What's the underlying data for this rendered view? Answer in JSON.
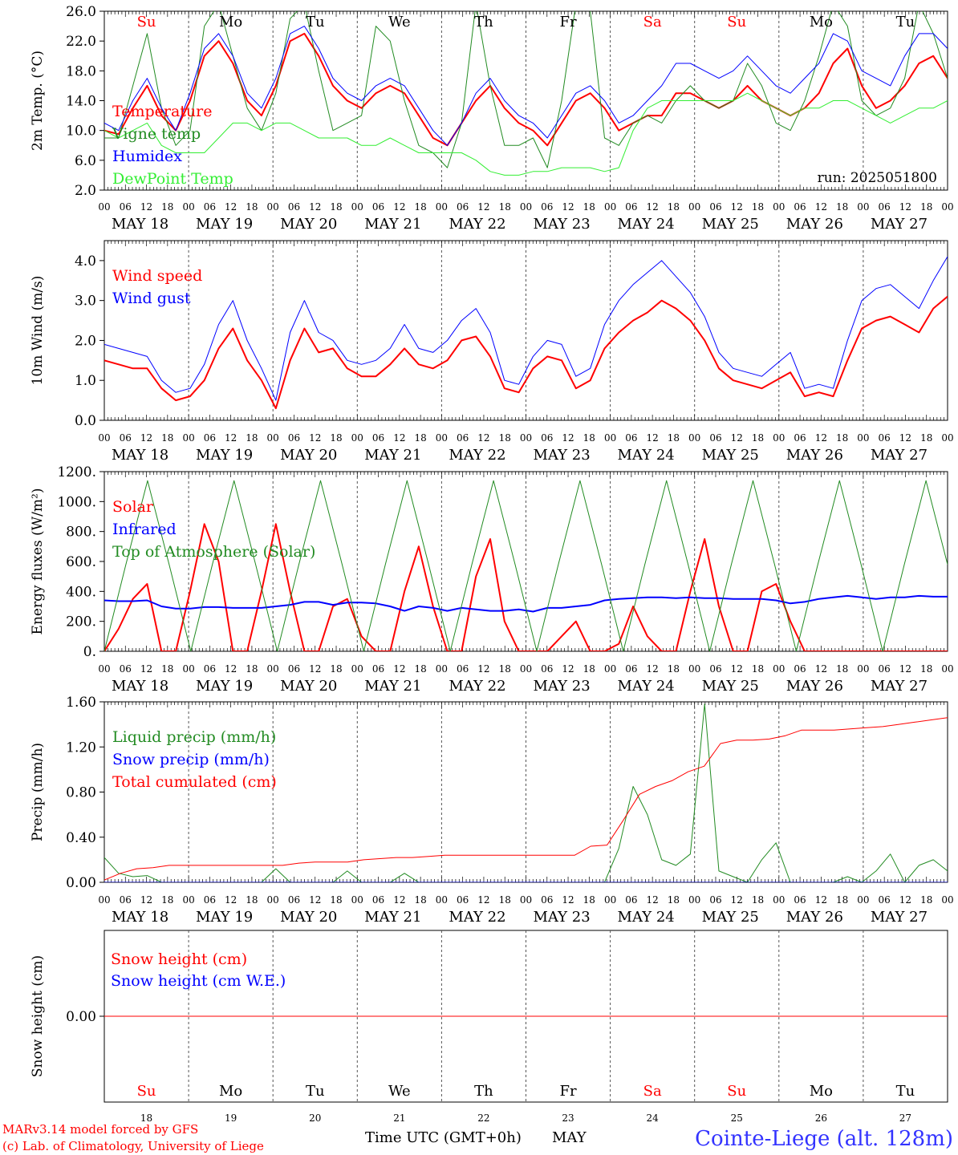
{
  "run_label": "run: 2025051800",
  "days": {
    "names": [
      "Su",
      "Mo",
      "Tu",
      "We",
      "Th",
      "Fr",
      "Sa",
      "Su",
      "Mo",
      "Tu"
    ],
    "dates": [
      "MAY 18",
      "MAY 19",
      "MAY 20",
      "MAY 21",
      "MAY 22",
      "MAY 23",
      "MAY 24",
      "MAY 25",
      "MAY 26",
      "MAY 27"
    ],
    "day_numbers": [
      "18",
      "19",
      "20",
      "21",
      "22",
      "23",
      "24",
      "25",
      "26",
      "27"
    ],
    "weekend_color": "#ff0000",
    "weekday_color": "#000000",
    "hour_ticks": [
      "00",
      "06",
      "12",
      "18"
    ],
    "final_hour": "00"
  },
  "footer": {
    "credit_line1": "MARv3.14 model forced by GFS",
    "credit_line2": "(c) Lab. of Climatology, University of Liege",
    "xaxis_label": "Time UTC (GMT+0h)",
    "month": "MAY",
    "station": "Cointe-Liege (alt. 128m)",
    "station_color": "#3333ff",
    "credit_color": "#ff0000"
  },
  "chart_data": [
    {
      "type": "line",
      "ylabel": "2m Temp. (°C)",
      "ylim": [
        2,
        26
      ],
      "yticks": [
        "2.0",
        "6.0",
        "10.0",
        "14.0",
        "18.0",
        "22.0",
        "26.0"
      ],
      "x_hours_per_point": 6,
      "series": [
        {
          "name": "Temperature",
          "color": "#ff0000",
          "width": 2,
          "values": [
            10,
            9.5,
            13,
            16,
            12,
            10,
            14,
            20,
            22,
            19,
            14,
            12,
            16,
            22,
            23,
            20,
            16,
            14,
            13,
            15,
            16,
            15,
            12,
            9,
            8,
            11,
            14,
            16,
            13,
            11,
            10,
            8,
            11,
            14,
            15,
            13,
            10,
            11,
            12,
            12,
            15,
            15,
            14,
            13,
            14,
            16,
            14,
            13,
            12,
            13,
            15,
            19,
            21,
            16,
            13,
            14,
            16,
            19,
            20,
            17
          ]
        },
        {
          "name": "Vigne temp",
          "color": "#228b22",
          "width": 1,
          "values": [
            9,
            9,
            16,
            23,
            13,
            8,
            10,
            24,
            27,
            20,
            13,
            10,
            15,
            25,
            27,
            18,
            10,
            11,
            12,
            24,
            22,
            14,
            8,
            7,
            5,
            11,
            27,
            16,
            8,
            8,
            9,
            5,
            14,
            27,
            26,
            9,
            8,
            11,
            12,
            11,
            14,
            16,
            14,
            13,
            14,
            19,
            16,
            11,
            10,
            14,
            20,
            27,
            24,
            14,
            12,
            13,
            17,
            27,
            23,
            17
          ]
        },
        {
          "name": "Humidex",
          "color": "#0000ff",
          "width": 1,
          "values": [
            11,
            10,
            14,
            17,
            13,
            10,
            15,
            21,
            23,
            20,
            15,
            13,
            17,
            23,
            24,
            21,
            17,
            15,
            14,
            16,
            17,
            16,
            13,
            10,
            8,
            11,
            15,
            17,
            14,
            12,
            11,
            9,
            12,
            15,
            16,
            14,
            11,
            12,
            14,
            16,
            19,
            19,
            18,
            17,
            18,
            20,
            18,
            16,
            15,
            17,
            19,
            23,
            22,
            18,
            17,
            16,
            20,
            23,
            23,
            21
          ]
        },
        {
          "name": "DewPoint Temp",
          "color": "#33ee33",
          "width": 1,
          "values": [
            10,
            9,
            10,
            11,
            8,
            7,
            7,
            7,
            9,
            11,
            11,
            10,
            11,
            11,
            10,
            9,
            9,
            9,
            8,
            8,
            9,
            8,
            7,
            7,
            7,
            7,
            6,
            4.5,
            4,
            4,
            4.5,
            4.5,
            5,
            5,
            5,
            4.5,
            5,
            10,
            13,
            14,
            14,
            14,
            14,
            14,
            14,
            15,
            14,
            13,
            12,
            13,
            13,
            14,
            14,
            13,
            12,
            11,
            12,
            13,
            13,
            14
          ]
        }
      ]
    },
    {
      "type": "line",
      "ylabel": "10m Wind (m/s)",
      "ylim": [
        0,
        4.5
      ],
      "yticks": [
        "0.0",
        "1.0",
        "2.0",
        "3.0",
        "4.0"
      ],
      "x_hours_per_point": 6,
      "series": [
        {
          "name": "Wind speed",
          "color": "#ff0000",
          "width": 2,
          "values": [
            1.5,
            1.4,
            1.3,
            1.3,
            0.8,
            0.5,
            0.6,
            1.0,
            1.8,
            2.3,
            1.5,
            1.0,
            0.3,
            1.5,
            2.3,
            1.7,
            1.8,
            1.3,
            1.1,
            1.1,
            1.4,
            1.8,
            1.4,
            1.3,
            1.5,
            2.0,
            2.1,
            1.6,
            0.8,
            0.7,
            1.3,
            1.6,
            1.5,
            0.8,
            1.0,
            1.8,
            2.2,
            2.5,
            2.7,
            3.0,
            2.8,
            2.5,
            2.0,
            1.3,
            1.0,
            0.9,
            0.8,
            1.0,
            1.2,
            0.6,
            0.7,
            0.6,
            1.5,
            2.3,
            2.5,
            2.6,
            2.4,
            2.2,
            2.8,
            3.1
          ]
        },
        {
          "name": "Wind gust",
          "color": "#0000ff",
          "width": 1,
          "values": [
            1.9,
            1.8,
            1.7,
            1.6,
            1.0,
            0.7,
            0.8,
            1.4,
            2.4,
            3.0,
            2.0,
            1.3,
            0.5,
            2.2,
            3.0,
            2.2,
            2.0,
            1.5,
            1.4,
            1.5,
            1.8,
            2.4,
            1.8,
            1.7,
            2.0,
            2.5,
            2.8,
            2.2,
            1.0,
            0.9,
            1.6,
            2.0,
            1.9,
            1.1,
            1.3,
            2.4,
            3.0,
            3.4,
            3.7,
            4.0,
            3.6,
            3.2,
            2.6,
            1.7,
            1.3,
            1.2,
            1.1,
            1.4,
            1.7,
            0.8,
            0.9,
            0.8,
            2.0,
            3.0,
            3.3,
            3.4,
            3.1,
            2.8,
            3.5,
            4.1
          ]
        }
      ]
    },
    {
      "type": "line",
      "ylabel": "Energy fluxes (W/m²)",
      "ylim": [
        0,
        1200
      ],
      "yticks": [
        "0.",
        "200.",
        "400.",
        "600.",
        "800.",
        "1000.",
        "1200."
      ],
      "x_hours_per_point": 6,
      "series": [
        {
          "name": "Solar",
          "color": "#ff0000",
          "width": 2,
          "values": [
            0,
            150,
            350,
            450,
            0,
            0,
            400,
            850,
            600,
            0,
            0,
            400,
            850,
            400,
            0,
            0,
            300,
            350,
            100,
            0,
            0,
            400,
            700,
            300,
            0,
            0,
            500,
            750,
            200,
            0,
            0,
            0,
            100,
            200,
            0,
            0,
            50,
            300,
            100,
            0,
            0,
            400,
            750,
            300,
            0,
            0,
            400,
            450,
            200,
            0,
            0,
            0,
            0,
            0,
            0,
            0,
            0,
            0,
            0,
            0
          ]
        },
        {
          "name": "Infrared",
          "color": "#0000ff",
          "width": 2,
          "values": [
            340,
            335,
            335,
            340,
            300,
            285,
            285,
            295,
            295,
            290,
            290,
            290,
            300,
            310,
            330,
            330,
            310,
            325,
            325,
            320,
            300,
            270,
            300,
            290,
            270,
            290,
            280,
            270,
            270,
            280,
            265,
            290,
            290,
            300,
            310,
            340,
            350,
            355,
            360,
            360,
            355,
            360,
            355,
            355,
            350,
            350,
            350,
            340,
            320,
            330,
            350,
            360,
            370,
            360,
            350,
            360,
            360,
            370,
            365,
            365
          ]
        },
        {
          "name": "Top of Atmosphere (Solar)",
          "color": "#228b22",
          "width": 1,
          "cycle": [
            0,
            580,
            1140,
            580
          ],
          "values": [
            0,
            580,
            1140,
            580,
            0,
            580,
            1140,
            580,
            0,
            580,
            1140,
            580,
            0,
            580,
            1140,
            580,
            0,
            580,
            1140,
            580,
            0,
            580,
            1140,
            580,
            0,
            580,
            1140,
            580,
            0,
            580,
            1140,
            580,
            0,
            580,
            1140,
            580,
            0,
            580,
            1140,
            580
          ]
        }
      ]
    },
    {
      "type": "line",
      "ylabel": "Precip (mm/h)",
      "ylim": [
        0,
        1.6
      ],
      "yticks": [
        "0.00",
        "0.40",
        "0.80",
        "1.20",
        "1.60"
      ],
      "x_hours_per_point": 6,
      "series": [
        {
          "name": "Liquid precip (mm/h)",
          "color": "#228b22",
          "width": 1,
          "values": [
            0.22,
            0.08,
            0.05,
            0.06,
            0,
            0,
            0,
            0,
            0,
            0,
            0,
            0,
            0.12,
            0,
            0,
            0,
            0,
            0.1,
            0,
            0,
            0,
            0.08,
            0,
            0,
            0,
            0,
            0,
            0,
            0,
            0,
            0,
            0,
            0,
            0,
            0,
            0,
            0.3,
            0.85,
            0.6,
            0.2,
            0.15,
            0.25,
            1.58,
            0.1,
            0.05,
            0,
            0.2,
            0.35,
            0,
            0,
            0,
            0,
            0.05,
            0,
            0.1,
            0.25,
            0,
            0.15,
            0.2,
            0.1
          ]
        },
        {
          "name": "Snow precip (mm/h)",
          "color": "#0000ff",
          "width": 1,
          "values": [
            0,
            0,
            0,
            0,
            0,
            0,
            0,
            0,
            0,
            0,
            0,
            0,
            0,
            0,
            0,
            0,
            0,
            0,
            0,
            0,
            0,
            0,
            0,
            0,
            0,
            0,
            0,
            0,
            0,
            0,
            0,
            0,
            0,
            0,
            0,
            0,
            0,
            0,
            0,
            0
          ]
        },
        {
          "name": "Total cumulated (cm)",
          "color": "#ff0000",
          "width": 1,
          "values": [
            0.02,
            0.08,
            0.12,
            0.13,
            0.15,
            0.15,
            0.15,
            0.15,
            0.15,
            0.15,
            0.15,
            0.15,
            0.17,
            0.18,
            0.18,
            0.18,
            0.2,
            0.21,
            0.22,
            0.22,
            0.23,
            0.24,
            0.24,
            0.24,
            0.24,
            0.24,
            0.24,
            0.24,
            0.24,
            0.24,
            0.32,
            0.33,
            0.55,
            0.78,
            0.85,
            0.9,
            0.98,
            1.03,
            1.23,
            1.26,
            1.26,
            1.27,
            1.3,
            1.35,
            1.35,
            1.35,
            1.36,
            1.37,
            1.38,
            1.4,
            1.42,
            1.44,
            1.46
          ]
        }
      ]
    },
    {
      "type": "line",
      "ylabel": "Snow height (cm)",
      "ylim": [
        -1,
        1
      ],
      "yticks": [
        "0.00"
      ],
      "x_hours_per_point": 6,
      "series": [
        {
          "name": "Snow height (cm)",
          "color": "#ff0000",
          "width": 1,
          "values": [
            0,
            0
          ]
        },
        {
          "name": "Snow height (cm W.E.)",
          "color": "#0000ff",
          "width": 1,
          "legend_only": true,
          "values": []
        }
      ]
    }
  ]
}
